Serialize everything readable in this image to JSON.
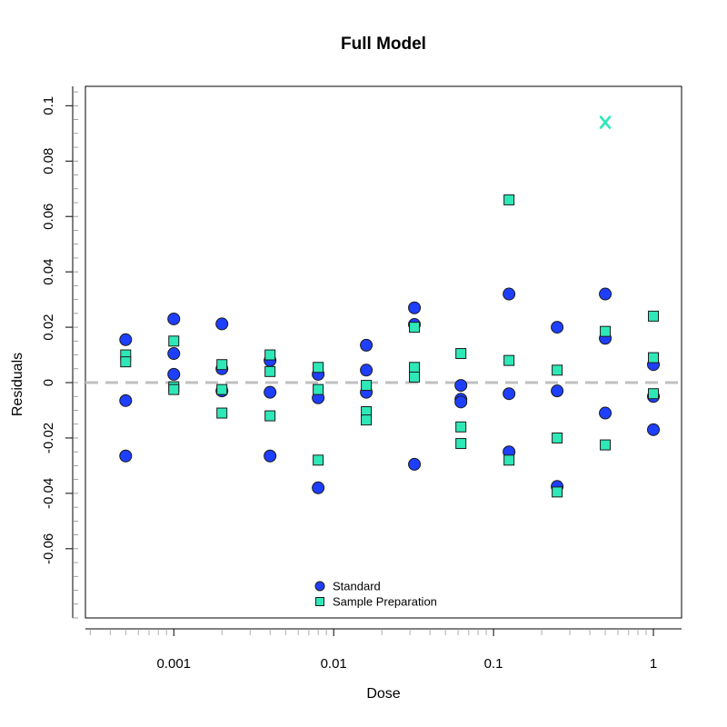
{
  "chart_data": {
    "type": "scatter",
    "title": "Full Model",
    "xlabel": "Dose",
    "ylabel": "Residuals",
    "x_scale": "log",
    "xlim": [
      0.00028,
      1.5
    ],
    "ylim": [
      -0.085,
      0.107
    ],
    "x_ticks": [
      {
        "value": 0.001,
        "label": "0.001"
      },
      {
        "value": 0.01,
        "label": "0.01"
      },
      {
        "value": 0.1,
        "label": "0.1"
      },
      {
        "value": 1,
        "label": "1"
      }
    ],
    "y_ticks": [
      {
        "value": 0.1,
        "label": "0.1"
      },
      {
        "value": 0.08,
        "label": "0.08"
      },
      {
        "value": 0.06,
        "label": "0.06"
      },
      {
        "value": 0.04,
        "label": "0.04"
      },
      {
        "value": 0.02,
        "label": "0.02"
      },
      {
        "value": 0,
        "label": "0"
      },
      {
        "value": -0.02,
        "label": "-0.02"
      },
      {
        "value": -0.04,
        "label": "-0.04"
      },
      {
        "value": -0.06,
        "label": "-0.06"
      }
    ],
    "reference_line": {
      "y": 0,
      "style": "dashed",
      "color": "#c0c0c0"
    },
    "legend_position": "bottom-center",
    "series": [
      {
        "name": "Standard",
        "marker": "circle",
        "color": "#1f3fff",
        "points": [
          [
            0.0005,
            0.0155
          ],
          [
            0.0005,
            -0.0065
          ],
          [
            0.0005,
            -0.0265
          ],
          [
            0.001,
            0.023
          ],
          [
            0.001,
            0.0105
          ],
          [
            0.001,
            0.003
          ],
          [
            0.002,
            0.0212
          ],
          [
            0.002,
            0.005
          ],
          [
            0.002,
            -0.003
          ],
          [
            0.004,
            0.008
          ],
          [
            0.004,
            -0.0035
          ],
          [
            0.004,
            -0.0265
          ],
          [
            0.008,
            0.003
          ],
          [
            0.008,
            -0.0055
          ],
          [
            0.008,
            -0.038
          ],
          [
            0.016,
            0.0135
          ],
          [
            0.016,
            0.0045
          ],
          [
            0.016,
            -0.0035
          ],
          [
            0.032,
            0.027
          ],
          [
            0.032,
            0.021
          ],
          [
            0.032,
            -0.0295
          ],
          [
            0.0625,
            -0.001
          ],
          [
            0.0625,
            -0.006
          ],
          [
            0.0625,
            -0.007
          ],
          [
            0.125,
            0.032
          ],
          [
            0.125,
            -0.004
          ],
          [
            0.125,
            -0.025
          ],
          [
            0.25,
            0.02
          ],
          [
            0.25,
            -0.003
          ],
          [
            0.25,
            -0.0375
          ],
          [
            0.5,
            0.032
          ],
          [
            0.5,
            0.016
          ],
          [
            0.5,
            -0.011
          ],
          [
            1,
            0.0065
          ],
          [
            1,
            -0.005
          ],
          [
            1,
            -0.017
          ]
        ]
      },
      {
        "name": "Sample Preparation",
        "marker": "square",
        "color": "#2ee8b8",
        "points": [
          [
            0.0005,
            0.01
          ],
          [
            0.0005,
            0.0075
          ],
          [
            0.001,
            0.015
          ],
          [
            0.001,
            -0.0015
          ],
          [
            0.001,
            -0.0025
          ],
          [
            0.002,
            0.0065
          ],
          [
            0.002,
            -0.0025
          ],
          [
            0.002,
            -0.011
          ],
          [
            0.004,
            0.01
          ],
          [
            0.004,
            0.004
          ],
          [
            0.004,
            -0.012
          ],
          [
            0.008,
            0.0055
          ],
          [
            0.008,
            -0.0025
          ],
          [
            0.008,
            -0.028
          ],
          [
            0.016,
            -0.001
          ],
          [
            0.016,
            -0.0105
          ],
          [
            0.016,
            -0.0135
          ],
          [
            0.032,
            0.02
          ],
          [
            0.032,
            0.0055
          ],
          [
            0.032,
            0.002
          ],
          [
            0.0625,
            0.0105
          ],
          [
            0.0625,
            -0.016
          ],
          [
            0.0625,
            -0.022
          ],
          [
            0.125,
            0.066
          ],
          [
            0.125,
            0.008
          ],
          [
            0.125,
            -0.028
          ],
          [
            0.25,
            0.0045
          ],
          [
            0.25,
            -0.02
          ],
          [
            0.25,
            -0.0395
          ],
          [
            0.5,
            0.0185
          ],
          [
            0.5,
            -0.0225
          ],
          [
            1,
            0.024
          ],
          [
            1,
            0.009
          ],
          [
            1,
            -0.004
          ]
        ]
      }
    ],
    "outliers": [
      {
        "x": 0.5,
        "y": 0.094,
        "marker": "X",
        "color": "#2ee8b8"
      }
    ]
  }
}
